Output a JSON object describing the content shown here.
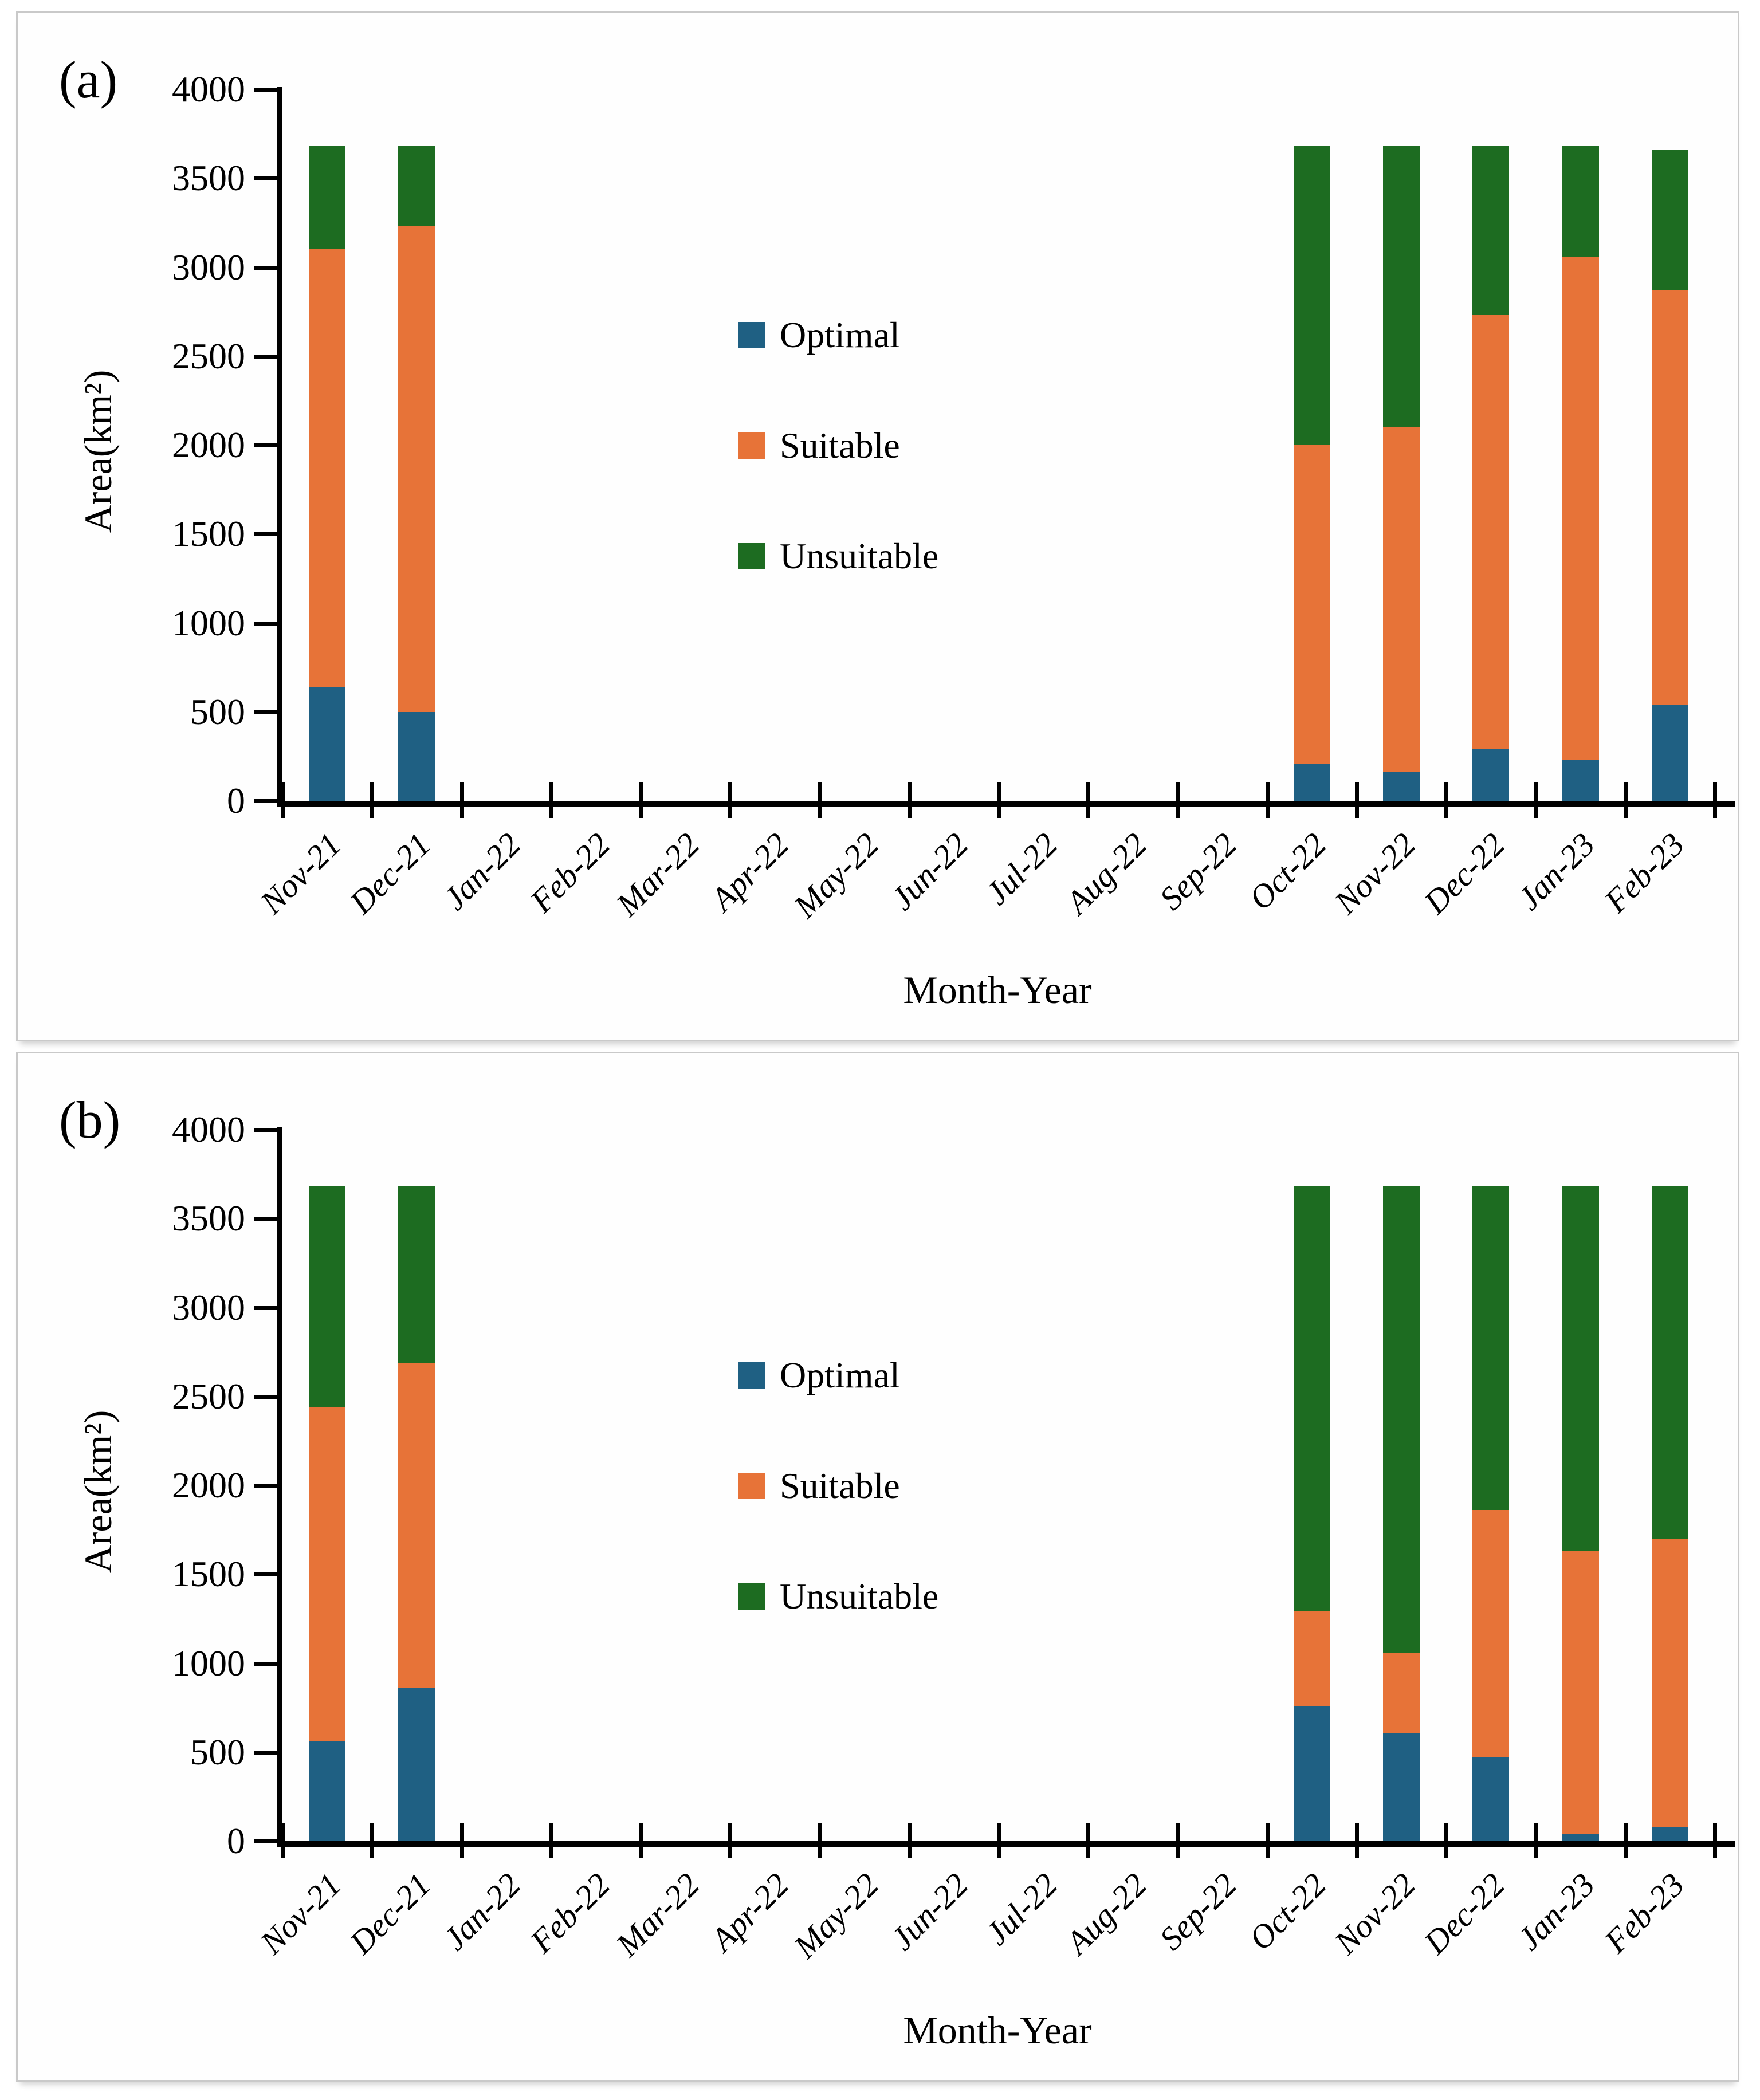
{
  "colors": {
    "optimal": "#1F6083",
    "suitable": "#E77338",
    "unsuitable": "#1D6C21",
    "axis": "#000000",
    "panel_border": "#c9c9c9"
  },
  "chart_data": [
    {
      "type": "bar",
      "stacked": true,
      "panel_label": "(a)",
      "xlabel": "Month-Year",
      "ylabel": "Area(km²)",
      "ylim": [
        0,
        4000
      ],
      "ytick_step": 500,
      "grid": false,
      "legend_position": "left-center of plot area",
      "categories": [
        "Nov-21",
        "Dec-21",
        "Jan-22",
        "Feb-22",
        "Mar-22",
        "Apr-22",
        "May-22",
        "Jun-22",
        "Jul-22",
        "Aug-22",
        "Sep-22",
        "Oct-22",
        "Nov-22",
        "Dec-22",
        "Jan-23",
        "Feb-23"
      ],
      "series": [
        {
          "name": "Optimal",
          "color": "#1F6083",
          "values": [
            640,
            500,
            0,
            0,
            0,
            0,
            0,
            0,
            0,
            0,
            0,
            210,
            160,
            290,
            230,
            540
          ]
        },
        {
          "name": "Suitable",
          "color": "#E77338",
          "values": [
            2460,
            2730,
            0,
            0,
            0,
            0,
            0,
            0,
            0,
            0,
            0,
            1790,
            1940,
            2440,
            2830,
            2330
          ]
        },
        {
          "name": "Unsuitable",
          "color": "#1D6C21",
          "values": [
            580,
            450,
            0,
            0,
            0,
            0,
            0,
            0,
            0,
            0,
            0,
            1680,
            1580,
            950,
            620,
            790
          ]
        }
      ]
    },
    {
      "type": "bar",
      "stacked": true,
      "panel_label": "(b)",
      "xlabel": "Month-Year",
      "ylabel": "Area(km²)",
      "ylim": [
        0,
        4000
      ],
      "ytick_step": 500,
      "grid": false,
      "legend_position": "left-center of plot area",
      "categories": [
        "Nov-21",
        "Dec-21",
        "Jan-22",
        "Feb-22",
        "Mar-22",
        "Apr-22",
        "May-22",
        "Jun-22",
        "Jul-22",
        "Aug-22",
        "Sep-22",
        "Oct-22",
        "Nov-22",
        "Dec-22",
        "Jan-23",
        "Feb-23"
      ],
      "series": [
        {
          "name": "Optimal",
          "color": "#1F6083",
          "values": [
            560,
            860,
            0,
            0,
            0,
            0,
            0,
            0,
            0,
            0,
            0,
            760,
            610,
            470,
            40,
            80
          ]
        },
        {
          "name": "Suitable",
          "color": "#E77338",
          "values": [
            1880,
            1830,
            0,
            0,
            0,
            0,
            0,
            0,
            0,
            0,
            0,
            530,
            450,
            1390,
            1590,
            1620
          ]
        },
        {
          "name": "Unsuitable",
          "color": "#1D6C21",
          "values": [
            1240,
            990,
            0,
            0,
            0,
            0,
            0,
            0,
            0,
            0,
            0,
            2390,
            2620,
            1820,
            2050,
            1980
          ]
        }
      ]
    }
  ]
}
